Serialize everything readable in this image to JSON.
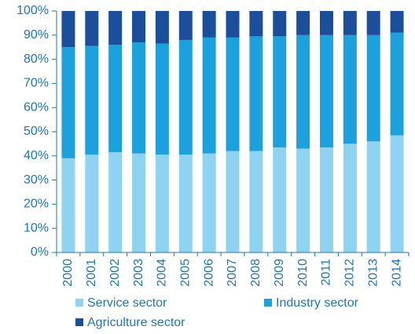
{
  "chart_data": {
    "type": "stacked_bar",
    "categories": [
      "2000",
      "2001",
      "2002",
      "2003",
      "2004",
      "2005",
      "2006",
      "2007",
      "2008",
      "2009",
      "2010",
      "2011",
      "2012",
      "2013",
      "2014"
    ],
    "series": [
      {
        "name": "Service sector",
        "color": "#8ed3f1",
        "values": [
          39,
          40.5,
          41.5,
          41,
          40.5,
          40.5,
          41,
          42,
          42,
          43.5,
          43,
          43.5,
          45,
          46,
          48.5
        ]
      },
      {
        "name": "Industry sector",
        "color": "#1ba1dd",
        "values": [
          46,
          45,
          44.5,
          46,
          46,
          47.5,
          48,
          47,
          47.5,
          46,
          47,
          46.5,
          45,
          44,
          42.5
        ]
      },
      {
        "name": "Agriculture sector",
        "color": "#1b4f9b",
        "values": [
          15,
          14.5,
          14,
          13,
          13.5,
          12,
          11,
          11,
          10.5,
          10.5,
          10,
          10,
          10,
          10,
          9
        ]
      }
    ],
    "ylim": [
      0,
      100
    ],
    "yticks": [
      {
        "value": 0,
        "label": "0%"
      },
      {
        "value": 10,
        "label": "10%"
      },
      {
        "value": 20,
        "label": "20%"
      },
      {
        "value": 30,
        "label": "30%"
      },
      {
        "value": 40,
        "label": "40%"
      },
      {
        "value": 50,
        "label": "50%"
      },
      {
        "value": 60,
        "label": "60%"
      },
      {
        "value": 70,
        "label": "70%"
      },
      {
        "value": 80,
        "label": "80%"
      },
      {
        "value": 90,
        "label": "90%"
      },
      {
        "value": 100,
        "label": "100%"
      }
    ]
  }
}
